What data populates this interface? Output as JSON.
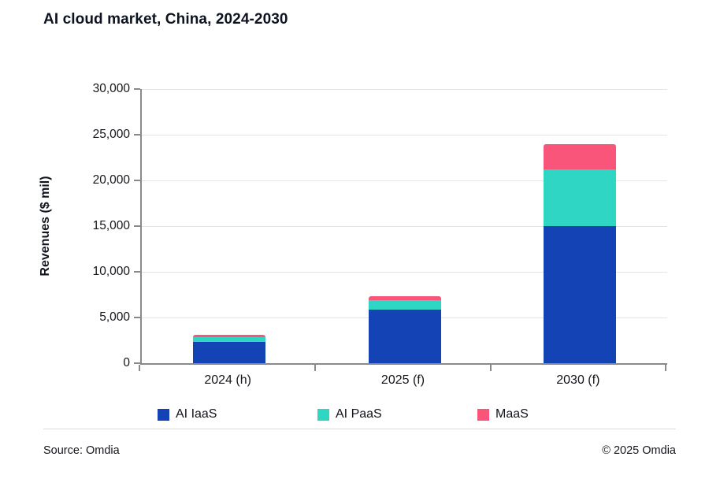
{
  "title": "AI cloud market, China, 2024-2030",
  "footer": {
    "source": "Source: Omdia",
    "copyright": "© 2025 Omdia"
  },
  "chart_data": {
    "type": "bar",
    "stacked": true,
    "title": "AI cloud market, China, 2024-2030",
    "categories": [
      "2024 (h)",
      "2025 (f)",
      "2030 (f)"
    ],
    "series": [
      {
        "name": "AI IaaS",
        "color": "#1343b5",
        "values": [
          2300,
          5900,
          15000
        ]
      },
      {
        "name": "AI PaaS",
        "color": "#2ed6c3",
        "values": [
          550,
          1000,
          6200
        ]
      },
      {
        "name": "MaaS",
        "color": "#f9547a",
        "values": [
          250,
          400,
          2800
        ]
      }
    ],
    "totals": [
      3100,
      7300,
      24000
    ],
    "xlabel": "",
    "ylabel": "Revenues ($ mil)",
    "ylim": [
      0,
      30000
    ],
    "ytick_step": 5000,
    "ytick_labels": [
      "0",
      "5,000",
      "10,000",
      "15,000",
      "20,000",
      "25,000",
      "30,000"
    ],
    "grid": "horizontal",
    "legend_position": "bottom",
    "axis_color": "#8a8a8a",
    "gridline_color": "#e4e4e4"
  }
}
